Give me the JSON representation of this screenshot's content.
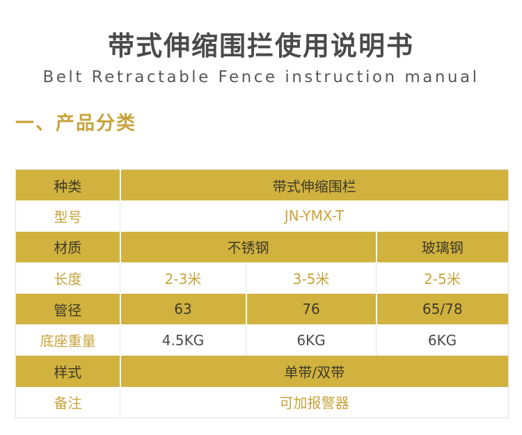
{
  "page": {
    "title_cn": "带式伸缩围拦使用说明书",
    "title_en": "Belt Retractable Fence instruction manual",
    "section_heading": "一、产品分类"
  },
  "colors": {
    "gold_bg": "#d1b23f",
    "gold_text": "#c8a33c",
    "dark_on_gold": "#3e3a28",
    "dark_value": "#4a4a4a",
    "title_color": "#4a4a4a",
    "subtitle_color": "#585858"
  },
  "table": {
    "value_columns": 3,
    "rows": [
      {
        "label": "种类",
        "style": "gold",
        "value_color": "dark",
        "cells": [
          {
            "text": "带式伸缩围栏",
            "span": 3
          }
        ]
      },
      {
        "label": "型号",
        "style": "white",
        "value_color": "gold",
        "cells": [
          {
            "text": "JN-YMX-T",
            "span": 3
          }
        ]
      },
      {
        "label": "材质",
        "style": "gold",
        "value_color": "dark",
        "cells": [
          {
            "text": "不锈钢",
            "span": 2
          },
          {
            "text": "玻璃钢",
            "span": 1
          }
        ]
      },
      {
        "label": "长度",
        "style": "white",
        "value_color": "gold",
        "cells": [
          {
            "text": "2-3米",
            "span": 1
          },
          {
            "text": "3-5米",
            "span": 1
          },
          {
            "text": "2-5米",
            "span": 1
          }
        ]
      },
      {
        "label": "管径",
        "style": "gold",
        "value_color": "dark",
        "cells": [
          {
            "text": "63",
            "span": 1
          },
          {
            "text": "76",
            "span": 1
          },
          {
            "text": "65/78",
            "span": 1
          }
        ]
      },
      {
        "label": "底座重量",
        "style": "white",
        "value_color": "dark",
        "cells": [
          {
            "text": "4.5KG",
            "span": 1
          },
          {
            "text": "6KG",
            "span": 1
          },
          {
            "text": "6KG",
            "span": 1
          }
        ]
      },
      {
        "label": "样式",
        "style": "gold",
        "value_color": "dark",
        "cells": [
          {
            "text": "单带/双带",
            "span": 3
          }
        ]
      },
      {
        "label": "备注",
        "style": "white",
        "value_color": "gold",
        "cells": [
          {
            "text": "可加报警器",
            "span": 3
          }
        ]
      }
    ]
  }
}
